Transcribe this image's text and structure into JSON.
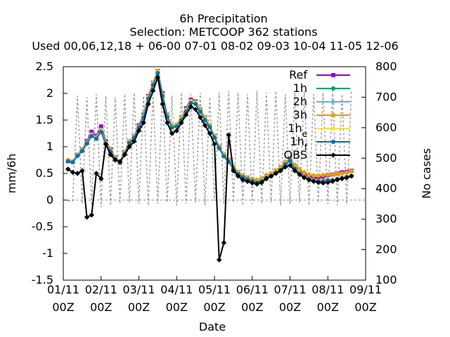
{
  "title": {
    "line1": "6h Precipitation",
    "line2": "Selection: METCOOP     362 stations",
    "line3": "Used  00,06,12,18 + 06-00 07-01 08-02 09-03 10-04 11-05 12-06"
  },
  "chart_data": {
    "type": "line",
    "xlabel": "Date",
    "ylabel": "mm/6h",
    "y2label": "No cases",
    "ylim": [
      -1.5,
      2.5
    ],
    "y2lim": [
      100,
      800
    ],
    "xlim": [
      "01/11 00Z",
      "09/11 00Z"
    ],
    "x_tick_labels": [
      {
        "date": "01/11",
        "hour": "00Z"
      },
      {
        "date": "02/11",
        "hour": "00Z"
      },
      {
        "date": "03/11",
        "hour": "00Z"
      },
      {
        "date": "04/11",
        "hour": "00Z"
      },
      {
        "date": "05/11",
        "hour": "00Z"
      },
      {
        "date": "06/11",
        "hour": "00Z"
      },
      {
        "date": "07/11",
        "hour": "00Z"
      },
      {
        "date": "08/11",
        "hour": "00Z"
      },
      {
        "date": "09/11",
        "hour": "00Z"
      }
    ],
    "y_tick_labels": [
      "-1.5",
      "-1",
      "-0.5",
      "0",
      "0.5",
      "1",
      "1.5",
      "2",
      "2.5"
    ],
    "y2_tick_labels": [
      "100",
      "200",
      "300",
      "400",
      "500",
      "600",
      "700",
      "800"
    ],
    "grid": false,
    "legend_position": "top-right",
    "x_hours": [
      3,
      6,
      9,
      12,
      15,
      18,
      21,
      24,
      27,
      30,
      33,
      36,
      39,
      42,
      45,
      48,
      51,
      54,
      57,
      60,
      63,
      66,
      69,
      72,
      75,
      78,
      81,
      84,
      87,
      90,
      93,
      96,
      99,
      102,
      105,
      108,
      111,
      114,
      117,
      120,
      123,
      126,
      129,
      132,
      135,
      138,
      141,
      144,
      147,
      150,
      153,
      156,
      159,
      162,
      165,
      168,
      171,
      174,
      177,
      180,
      183
    ],
    "series": [
      {
        "name": "Ref",
        "color": "#9400d3",
        "marker": "square",
        "values": [
          0.73,
          0.72,
          0.85,
          0.95,
          1.1,
          1.28,
          1.2,
          1.38,
          1.1,
          0.95,
          0.8,
          0.72,
          0.9,
          1.1,
          1.2,
          1.4,
          1.6,
          1.95,
          2.2,
          2.42,
          2.0,
          1.6,
          1.38,
          1.4,
          1.55,
          1.72,
          1.88,
          1.85,
          1.7,
          1.55,
          1.4,
          1.2,
          1.0,
          0.85,
          0.75,
          0.62,
          0.52,
          0.45,
          0.42,
          0.38,
          0.35,
          0.38,
          0.45,
          0.48,
          0.55,
          0.6,
          0.7,
          0.78,
          0.65,
          0.55,
          0.48,
          0.45,
          0.42,
          0.42,
          0.44,
          0.47,
          0.48,
          0.5,
          0.52,
          0.53,
          0.55
        ]
      },
      {
        "name": "1h",
        "color": "#009e73",
        "marker": "circle",
        "values": [
          0.74,
          0.72,
          0.84,
          0.93,
          1.07,
          1.22,
          1.17,
          1.3,
          1.06,
          0.92,
          0.78,
          0.71,
          0.88,
          1.08,
          1.18,
          1.37,
          1.57,
          1.92,
          2.18,
          2.4,
          1.97,
          1.58,
          1.37,
          1.4,
          1.52,
          1.68,
          1.84,
          1.82,
          1.67,
          1.52,
          1.38,
          1.18,
          0.98,
          0.83,
          0.73,
          0.6,
          0.5,
          0.44,
          0.4,
          0.37,
          0.34,
          0.36,
          0.43,
          0.46,
          0.52,
          0.58,
          0.68,
          0.75,
          0.6,
          0.5,
          0.44,
          0.4,
          0.37,
          0.36,
          0.36,
          0.38,
          0.38,
          0.4,
          0.42,
          0.44,
          0.46
        ]
      },
      {
        "name": "2h",
        "color": "#56b4e9",
        "marker": "star",
        "values": [
          0.74,
          0.72,
          0.84,
          0.93,
          1.07,
          1.21,
          1.16,
          1.3,
          1.06,
          0.92,
          0.78,
          0.71,
          0.88,
          1.08,
          1.18,
          1.37,
          1.57,
          1.92,
          2.18,
          2.4,
          1.97,
          1.58,
          1.37,
          1.4,
          1.52,
          1.68,
          1.84,
          1.82,
          1.67,
          1.52,
          1.38,
          1.18,
          0.98,
          0.83,
          0.73,
          0.6,
          0.5,
          0.44,
          0.4,
          0.37,
          0.34,
          0.36,
          0.43,
          0.46,
          0.52,
          0.58,
          0.68,
          0.75,
          0.6,
          0.5,
          0.44,
          0.4,
          0.37,
          0.36,
          0.36,
          0.38,
          0.38,
          0.4,
          0.42,
          0.44,
          0.46
        ]
      },
      {
        "name": "3h",
        "color": "#e69f00",
        "marker": "circle",
        "values": [
          0.75,
          0.73,
          0.85,
          0.95,
          1.08,
          1.23,
          1.18,
          1.32,
          1.08,
          0.94,
          0.8,
          0.72,
          0.9,
          1.1,
          1.2,
          1.38,
          1.58,
          1.94,
          2.2,
          2.42,
          1.98,
          1.6,
          1.4,
          1.42,
          1.55,
          1.7,
          1.86,
          1.84,
          1.7,
          1.55,
          1.4,
          1.2,
          1.0,
          0.86,
          0.75,
          0.63,
          0.53,
          0.46,
          0.42,
          0.4,
          0.38,
          0.4,
          0.47,
          0.5,
          0.56,
          0.62,
          0.72,
          0.78,
          0.66,
          0.58,
          0.52,
          0.48,
          0.46,
          0.46,
          0.47,
          0.48,
          0.48,
          0.5,
          0.5,
          0.52,
          0.55
        ]
      },
      {
        "name": "1he",
        "color": "#f0e442",
        "marker": "circle",
        "values": [
          0.74,
          0.72,
          0.84,
          0.93,
          1.07,
          1.22,
          1.16,
          1.3,
          1.06,
          0.92,
          0.78,
          0.71,
          0.88,
          1.08,
          1.18,
          1.37,
          1.57,
          1.92,
          2.18,
          2.4,
          1.97,
          1.58,
          1.37,
          1.4,
          1.52,
          1.68,
          1.84,
          1.82,
          1.67,
          1.52,
          1.38,
          1.18,
          0.98,
          0.83,
          0.73,
          0.6,
          0.5,
          0.44,
          0.4,
          0.37,
          0.34,
          0.36,
          0.43,
          0.46,
          0.52,
          0.58,
          0.68,
          0.75,
          0.6,
          0.5,
          0.44,
          0.4,
          0.37,
          0.36,
          0.36,
          0.38,
          0.38,
          0.4,
          0.42,
          0.44,
          0.46
        ]
      },
      {
        "name": "1hf",
        "color": "#0072b2",
        "marker": "circle",
        "values": [
          0.73,
          0.71,
          0.83,
          0.92,
          1.06,
          1.2,
          1.15,
          1.28,
          1.05,
          0.91,
          0.77,
          0.7,
          0.87,
          1.07,
          1.17,
          1.36,
          1.55,
          1.9,
          2.16,
          2.38,
          1.95,
          1.56,
          1.36,
          1.38,
          1.5,
          1.66,
          1.82,
          1.8,
          1.66,
          1.5,
          1.37,
          1.17,
          0.97,
          0.82,
          0.72,
          0.59,
          0.49,
          0.43,
          0.39,
          0.36,
          0.33,
          0.35,
          0.42,
          0.45,
          0.51,
          0.57,
          0.67,
          0.74,
          0.59,
          0.49,
          0.43,
          0.39,
          0.36,
          0.35,
          0.35,
          0.37,
          0.37,
          0.39,
          0.41,
          0.43,
          0.45
        ]
      },
      {
        "name": "OBS",
        "color": "#000000",
        "marker": "diamond",
        "values": [
          0.58,
          0.52,
          0.5,
          0.55,
          -0.32,
          -0.28,
          0.5,
          0.4,
          1.05,
          0.85,
          0.75,
          0.72,
          0.85,
          1.0,
          1.1,
          1.3,
          1.45,
          1.8,
          2.05,
          2.3,
          1.8,
          1.45,
          1.25,
          1.3,
          1.45,
          1.6,
          1.75,
          1.7,
          1.55,
          1.4,
          1.25,
          1.05,
          -1.12,
          -0.8,
          1.22,
          0.55,
          0.45,
          0.38,
          0.35,
          0.32,
          0.3,
          0.33,
          0.4,
          0.45,
          0.5,
          0.55,
          0.62,
          0.65,
          0.55,
          0.48,
          0.42,
          0.38,
          0.35,
          0.33,
          0.32,
          0.33,
          0.35,
          0.38,
          0.4,
          0.42,
          0.45
        ]
      },
      {
        "name": "No cases",
        "color": "#a0a0a0",
        "axis": "y2",
        "values": [
          360,
          360,
          705,
          350,
          700,
          345,
          710,
          340,
          705,
          345,
          700,
          350,
          710,
          355,
          715,
          350,
          705,
          345,
          710,
          350,
          720,
          355,
          705,
          345,
          715,
          350,
          710,
          355,
          715,
          345,
          700,
          360,
          715,
          350,
          720,
          355,
          715,
          345,
          710,
          350,
          720,
          350,
          715,
          355,
          720,
          345,
          710,
          350,
          715,
          355,
          720,
          345,
          710,
          355,
          715,
          350,
          720,
          345,
          710,
          350,
          720
        ]
      }
    ],
    "legend_labels": [
      {
        "series": "Ref",
        "main": "Ref",
        "sub": ""
      },
      {
        "series": "1h",
        "main": "1h",
        "sub": ""
      },
      {
        "series": "2h",
        "main": "2h",
        "sub": ""
      },
      {
        "series": "3h",
        "main": "3h",
        "sub": ""
      },
      {
        "series": "1he",
        "main": "1h",
        "sub": "e"
      },
      {
        "series": "1hf",
        "main": "1h",
        "sub": "f"
      },
      {
        "series": "OBS",
        "main": "OBS",
        "sub": ""
      }
    ]
  }
}
